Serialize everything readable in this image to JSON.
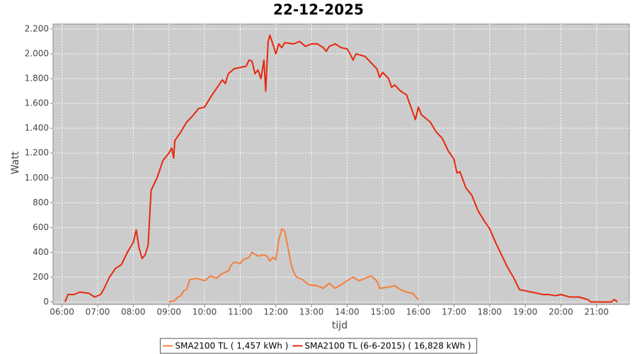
{
  "chart_data": {
    "type": "line",
    "title": "22-12-2025",
    "x_label": "tijd",
    "y_label": "Watt",
    "xlim": [
      "05:45",
      "21:55"
    ],
    "xticks": [
      "06:00",
      "07:00",
      "08:00",
      "09:00",
      "10:00",
      "11:00",
      "12:00",
      "13:00",
      "14:00",
      "15:00",
      "16:00",
      "17:00",
      "18:00",
      "19:00",
      "20:00",
      "21:00"
    ],
    "ylim": [
      -20,
      2240
    ],
    "yticks": [
      0,
      200,
      400,
      600,
      800,
      {
        "value": 1000,
        "label": "1.000"
      },
      {
        "value": 1200,
        "label": "1.200"
      },
      {
        "value": 1400,
        "label": "1.400"
      },
      {
        "value": 1600,
        "label": "1.600"
      },
      {
        "value": 1800,
        "label": "1.800"
      },
      {
        "value": 2000,
        "label": "2.000"
      },
      {
        "value": 2200,
        "label": "2.200"
      }
    ],
    "grid": true,
    "legend": "bottom",
    "series": [
      {
        "name": "SMA2100 TL ( 1,457 kWh )",
        "color": "#f47f3c",
        "x": [
          "09:00",
          "09:10",
          "09:15",
          "09:20",
          "09:25",
          "09:30",
          "09:35",
          "09:45",
          "09:55",
          "10:00",
          "10:10",
          "10:20",
          "10:30",
          "10:40",
          "10:45",
          "10:50",
          "11:00",
          "11:05",
          "11:15",
          "11:20",
          "11:30",
          "11:40",
          "11:45",
          "11:50",
          "11:55",
          "12:00",
          "12:05",
          "12:10",
          "12:15",
          "12:20",
          "12:25",
          "12:30",
          "12:35",
          "12:45",
          "12:55",
          "13:10",
          "13:20",
          "13:30",
          "13:40",
          "13:50",
          "14:00",
          "14:10",
          "14:20",
          "14:30",
          "14:40",
          "14:50",
          "14:55",
          "15:10",
          "15:20",
          "15:30",
          "15:40",
          "15:50",
          "16:00"
        ],
        "values": [
          0,
          10,
          40,
          50,
          90,
          100,
          180,
          190,
          180,
          170,
          210,
          190,
          230,
          250,
          300,
          320,
          310,
          340,
          360,
          400,
          370,
          380,
          370,
          330,
          360,
          340,
          500,
          590,
          570,
          450,
          320,
          240,
          200,
          180,
          140,
          130,
          110,
          150,
          110,
          140,
          170,
          200,
          170,
          190,
          210,
          170,
          110,
          120,
          130,
          100,
          80,
          70,
          20
        ]
      },
      {
        "name": "SMA2100 TL (6-6-2015) ( 16,828 kWh )",
        "color": "#e8270c",
        "x": [
          "06:05",
          "06:10",
          "06:20",
          "06:30",
          "06:45",
          "06:55",
          "07:05",
          "07:10",
          "07:20",
          "07:30",
          "07:40",
          "07:50",
          "08:00",
          "08:05",
          "08:10",
          "08:15",
          "08:20",
          "08:25",
          "08:30",
          "08:40",
          "08:50",
          "09:00",
          "09:05",
          "09:08",
          "09:10",
          "09:20",
          "09:30",
          "09:40",
          "09:50",
          "10:00",
          "10:10",
          "10:20",
          "10:30",
          "10:35",
          "10:40",
          "10:50",
          "11:00",
          "11:10",
          "11:15",
          "11:20",
          "11:25",
          "11:30",
          "11:35",
          "11:40",
          "11:43",
          "11:47",
          "11:50",
          "11:55",
          "12:00",
          "12:05",
          "12:10",
          "12:15",
          "12:30",
          "12:40",
          "12:50",
          "13:00",
          "13:10",
          "13:20",
          "13:25",
          "13:30",
          "13:40",
          "13:50",
          "14:00",
          "14:05",
          "14:10",
          "14:15",
          "14:30",
          "14:40",
          "14:50",
          "14:55",
          "15:00",
          "15:10",
          "15:15",
          "15:20",
          "15:30",
          "15:40",
          "15:55",
          "16:00",
          "16:05",
          "16:20",
          "16:30",
          "16:40",
          "16:50",
          "17:00",
          "17:05",
          "17:10",
          "17:20",
          "17:30",
          "17:40",
          "17:50",
          "18:00",
          "18:10",
          "18:20",
          "18:30",
          "18:40",
          "18:50",
          "19:00",
          "19:10",
          "19:20",
          "19:30",
          "19:40",
          "19:50",
          "20:00",
          "20:15",
          "20:30",
          "20:45",
          "20:50",
          "21:25",
          "21:30",
          "21:35"
        ],
        "values": [
          0,
          60,
          60,
          80,
          70,
          40,
          60,
          100,
          200,
          270,
          300,
          400,
          480,
          580,
          430,
          350,
          380,
          460,
          900,
          1000,
          1140,
          1200,
          1240,
          1160,
          1300,
          1370,
          1450,
          1500,
          1560,
          1570,
          1650,
          1720,
          1790,
          1760,
          1840,
          1880,
          1890,
          1900,
          1950,
          1940,
          1840,
          1870,
          1800,
          1950,
          1700,
          2100,
          2150,
          2080,
          2000,
          2080,
          2050,
          2090,
          2080,
          2100,
          2060,
          2080,
          2080,
          2050,
          2020,
          2060,
          2080,
          2050,
          2040,
          2000,
          1950,
          2000,
          1980,
          1930,
          1880,
          1810,
          1850,
          1800,
          1730,
          1750,
          1700,
          1670,
          1470,
          1570,
          1510,
          1450,
          1370,
          1320,
          1220,
          1150,
          1040,
          1050,
          920,
          860,
          740,
          660,
          590,
          480,
          380,
          280,
          200,
          100,
          90,
          80,
          70,
          60,
          60,
          50,
          60,
          40,
          40,
          20,
          0,
          0,
          20,
          0
        ]
      }
    ]
  }
}
